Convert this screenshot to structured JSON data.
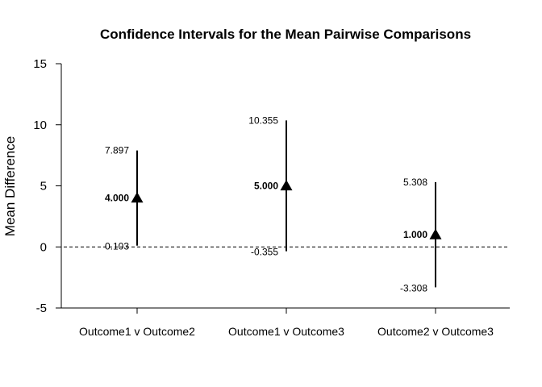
{
  "chart_data": {
    "type": "errorbar",
    "title": "Confidence Intervals for the Mean Pairwise Comparisons",
    "ylabel": "Mean Difference",
    "xlabel": "",
    "ylim": [
      -5,
      15
    ],
    "yticks": [
      "-5",
      "0",
      "5",
      "10",
      "15"
    ],
    "yticks_values": [
      -5,
      0,
      5,
      10,
      15
    ],
    "reference_line": 0,
    "reference_line_style": "dashed",
    "marker": "filled-triangle",
    "categories": [
      "Outcome1 v Outcome2",
      "Outcome1 v Outcome3",
      "Outcome2 v Outcome3"
    ],
    "points": [
      {
        "category": "Outcome1 v Outcome2",
        "mean": 4.0,
        "lower": 0.103,
        "upper": 7.897,
        "mean_label": "4.000",
        "lower_label": "0.103",
        "upper_label": "7.897"
      },
      {
        "category": "Outcome1 v Outcome3",
        "mean": 5.0,
        "lower": -0.355,
        "upper": 10.355,
        "mean_label": "5.000",
        "lower_label": "-0.355",
        "upper_label": "10.355"
      },
      {
        "category": "Outcome2 v Outcome3",
        "mean": 1.0,
        "lower": -3.308,
        "upper": 5.308,
        "mean_label": "1.000",
        "lower_label": "-3.308",
        "upper_label": "5.308"
      }
    ]
  }
}
